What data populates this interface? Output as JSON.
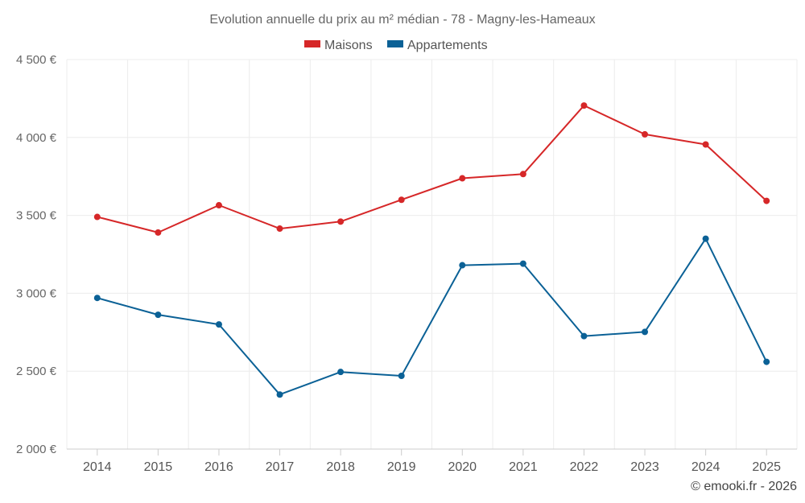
{
  "chart_data": {
    "type": "line",
    "title": "Evolution annuelle du prix au m² médian - 78 - Magny-les-Hameaux",
    "categories": [
      "2014",
      "2015",
      "2016",
      "2017",
      "2018",
      "2019",
      "2020",
      "2021",
      "2022",
      "2023",
      "2024",
      "2025"
    ],
    "series": [
      {
        "name": "Maisons",
        "color": "#d62728",
        "values": [
          3490,
          3390,
          3565,
          3415,
          3460,
          3600,
          3738,
          3765,
          4205,
          4020,
          3955,
          3593
        ]
      },
      {
        "name": "Appartements",
        "color": "#0b6196",
        "values": [
          2970,
          2862,
          2800,
          2350,
          2495,
          2470,
          3180,
          3190,
          2725,
          2752,
          3350,
          2560
        ]
      }
    ],
    "y_ticks": [
      "2 000 €",
      "2 500 €",
      "3 000 €",
      "3 500 €",
      "4 000 €",
      "4 500 €"
    ],
    "y_tick_values": [
      2000,
      2500,
      3000,
      3500,
      4000,
      4500
    ],
    "ylim": [
      2000,
      4500
    ],
    "xlabel": "",
    "ylabel": "",
    "grid": true,
    "legend_position": "top-center"
  },
  "footer": {
    "credit": "© emooki.fr - 2026"
  }
}
